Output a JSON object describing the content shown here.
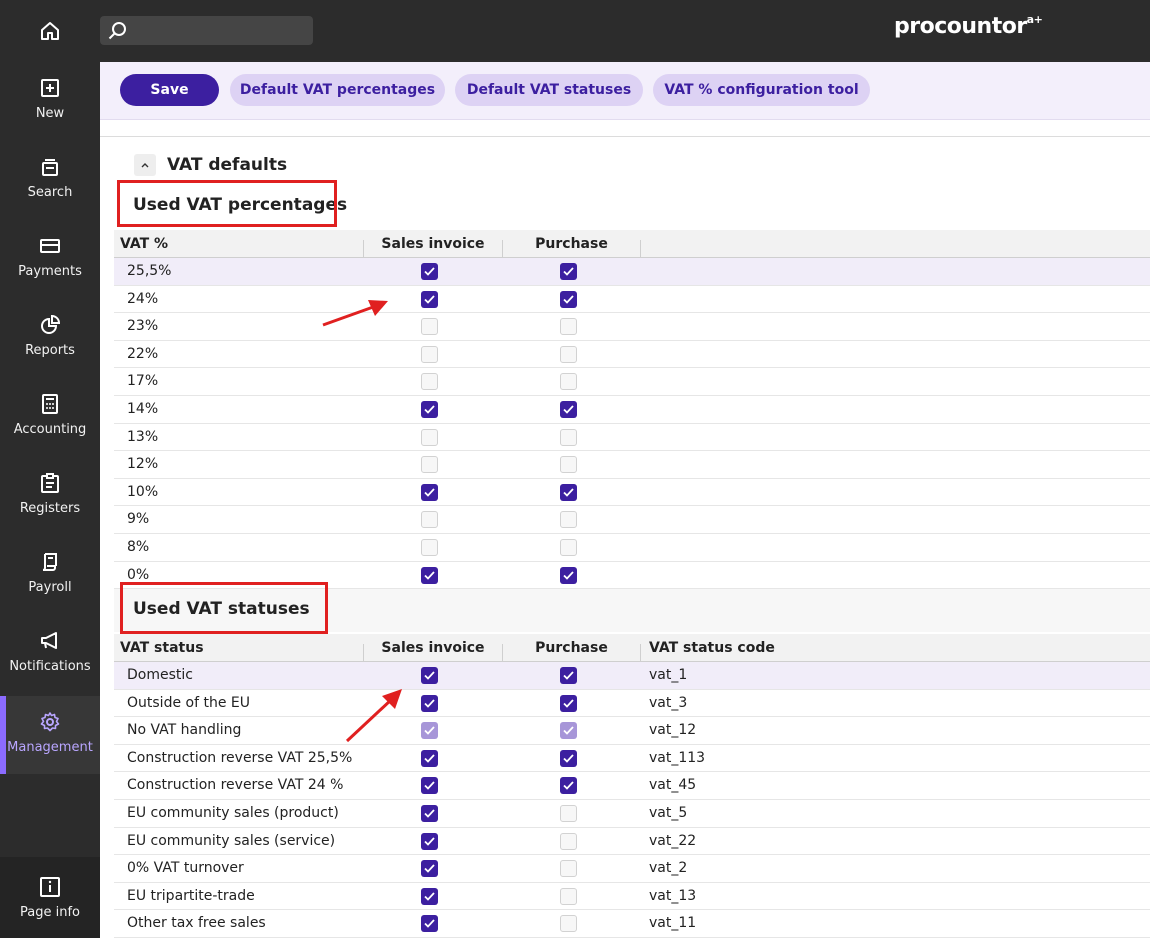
{
  "brand": {
    "name": "procountor",
    "sup": "a+"
  },
  "sidebar": {
    "items": [
      {
        "label": "New",
        "icon": "plus-square-icon"
      },
      {
        "label": "Search",
        "icon": "stack-search-icon"
      },
      {
        "label": "Payments",
        "icon": "card-icon"
      },
      {
        "label": "Reports",
        "icon": "pie-chart-icon"
      },
      {
        "label": "Accounting",
        "icon": "calculator-icon"
      },
      {
        "label": "Registers",
        "icon": "clipboard-icon"
      },
      {
        "label": "Payroll",
        "icon": "scroll-icon"
      },
      {
        "label": "Notifications",
        "icon": "megaphone-icon"
      },
      {
        "label": "Management",
        "icon": "gear-icon"
      }
    ],
    "active": "Management",
    "page_info": "Page info"
  },
  "toolbar": {
    "save": "Save",
    "default_vat_percentages": "Default VAT percentages",
    "default_vat_statuses": "Default VAT statuses",
    "config_tool": "VAT % configuration tool"
  },
  "section": {
    "title": "VAT defaults"
  },
  "percentages": {
    "title": "Used VAT percentages",
    "headers": {
      "vat": "VAT %",
      "sales": "Sales invoice",
      "purchase": "Purchase"
    },
    "rows": [
      {
        "vat": "25,5%",
        "sales": true,
        "purchase": true
      },
      {
        "vat": "24%",
        "sales": true,
        "purchase": true
      },
      {
        "vat": "23%",
        "sales": false,
        "purchase": false
      },
      {
        "vat": "22%",
        "sales": false,
        "purchase": false
      },
      {
        "vat": "17%",
        "sales": false,
        "purchase": false
      },
      {
        "vat": "14%",
        "sales": true,
        "purchase": true
      },
      {
        "vat": "13%",
        "sales": false,
        "purchase": false
      },
      {
        "vat": "12%",
        "sales": false,
        "purchase": false
      },
      {
        "vat": "10%",
        "sales": true,
        "purchase": true
      },
      {
        "vat": "9%",
        "sales": false,
        "purchase": false
      },
      {
        "vat": "8%",
        "sales": false,
        "purchase": false
      },
      {
        "vat": "0%",
        "sales": true,
        "purchase": true
      }
    ]
  },
  "statuses": {
    "title": "Used VAT statuses",
    "headers": {
      "status": "VAT status",
      "sales": "Sales invoice",
      "purchase": "Purchase",
      "code": "VAT status code"
    },
    "rows": [
      {
        "status": "Domestic",
        "sales": "on",
        "purchase": "on",
        "code": "vat_1"
      },
      {
        "status": "Outside of the EU",
        "sales": "on",
        "purchase": "on",
        "code": "vat_3"
      },
      {
        "status": "No VAT handling",
        "sales": "disabled",
        "purchase": "disabled",
        "code": "vat_12"
      },
      {
        "status": "Construction reverse VAT 25,5%",
        "sales": "on",
        "purchase": "on",
        "code": "vat_113"
      },
      {
        "status": "Construction reverse VAT 24 %",
        "sales": "on",
        "purchase": "on",
        "code": "vat_45"
      },
      {
        "status": "EU community sales (product)",
        "sales": "on",
        "purchase": "off",
        "code": "vat_5"
      },
      {
        "status": "EU community sales (service)",
        "sales": "on",
        "purchase": "off",
        "code": "vat_22"
      },
      {
        "status": "0% VAT turnover",
        "sales": "on",
        "purchase": "off",
        "code": "vat_2"
      },
      {
        "status": "EU tripartite-trade",
        "sales": "on",
        "purchase": "off",
        "code": "vat_13"
      },
      {
        "status": "Other tax free sales",
        "sales": "on",
        "purchase": "off",
        "code": "vat_11"
      }
    ]
  },
  "colors": {
    "accent": "#3c1fa0",
    "annotation": "#e02020",
    "sidebar": "#2c2c2c",
    "active_nav": "#8b6bff"
  }
}
